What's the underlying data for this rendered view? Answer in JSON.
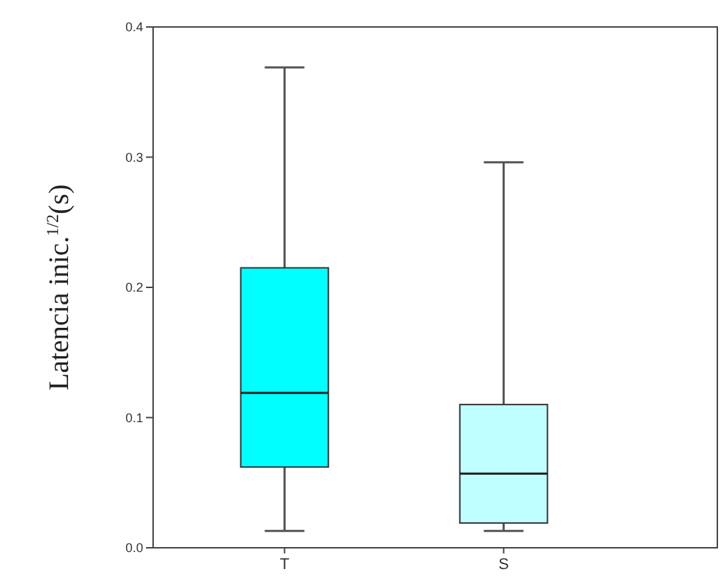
{
  "chart_data": {
    "type": "box",
    "ylabel": "Latencia inic.$^{1/2}$(s)",
    "categories": [
      "T",
      "S"
    ],
    "colors": [
      "#00ffff",
      "#bfffff"
    ],
    "boxes": [
      {
        "low": 0.013,
        "q1": 0.062,
        "median": 0.119,
        "q3": 0.215,
        "high": 0.369
      },
      {
        "low": 0.013,
        "q1": 0.019,
        "median": 0.057,
        "q3": 0.11,
        "high": 0.296
      }
    ],
    "ylim": [
      0,
      0.4
    ],
    "yticks": [
      {
        "value": 0,
        "label": "0.0"
      },
      {
        "value": 0.1,
        "label": "0.1"
      },
      {
        "value": 0.2,
        "label": "0.2"
      },
      {
        "value": 0.3,
        "label": "0.3"
      },
      {
        "value": 0.4,
        "label": "0.4"
      }
    ]
  }
}
